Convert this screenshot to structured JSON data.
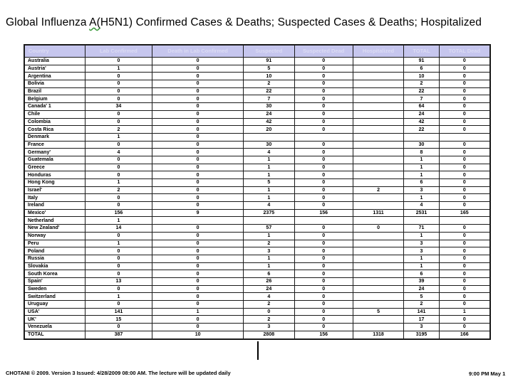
{
  "slide": {
    "title": {
      "text": "Global Influenza A(H5N1) Confirmed Cases & Deaths; Suspected Cases & Deaths; Hospitalized",
      "spellcheck_underline_segment": "A("
    },
    "footer_left": "CHOTANI © 2009. Version 3 Issued: 4/28/2009 08:00 AM. The lecture will be updated daily",
    "footer_right": "9:00 PM May 1"
  },
  "colors": {
    "header_bg": "#c6c6ee",
    "header_text": "#dcdcf4",
    "table_border": "#1a1a1a",
    "spellcheck_underline": "#3a9a3a"
  },
  "table": {
    "columns": [
      "Country",
      "Lab Confirmed",
      "Death in Lab Confirmed",
      "Suspected",
      "Suspected Dead",
      "Hospitalized",
      "TOTAL",
      "TOTAL Dead"
    ],
    "rows": [
      [
        "Australia",
        "0",
        "0",
        "91",
        "0",
        "",
        "91",
        "0"
      ],
      [
        "Austria'",
        "1",
        "0",
        "5",
        "0",
        "",
        "6",
        "0"
      ],
      [
        "Argentina",
        "0",
        "0",
        "10",
        "0",
        "",
        "10",
        "0"
      ],
      [
        "Bolivia",
        "0",
        "0",
        "2",
        "0",
        "",
        "2",
        "0"
      ],
      [
        "Brazil",
        "0",
        "0",
        "22",
        "0",
        "",
        "22",
        "0"
      ],
      [
        "Belgium",
        "0",
        "0",
        "7",
        "0",
        "",
        "7",
        "0"
      ],
      [
        "Canada' 1",
        "34",
        "0",
        "30",
        "0",
        "",
        "64",
        "0"
      ],
      [
        "Chile",
        "0",
        "0",
        "24",
        "0",
        "",
        "24",
        "0"
      ],
      [
        "Colombia",
        "0",
        "0",
        "42",
        "0",
        "",
        "42",
        "0"
      ],
      [
        "Costa Rica",
        "2",
        "0",
        "20",
        "0",
        "",
        "22",
        "0"
      ],
      [
        "Denmark",
        "1",
        "0",
        "",
        "",
        "",
        "",
        ""
      ],
      [
        "France",
        "0",
        "0",
        "30",
        "0",
        "",
        "30",
        "0"
      ],
      [
        "Germany'",
        "4",
        "0",
        "4",
        "0",
        "",
        "8",
        "0"
      ],
      [
        "Guatemala",
        "0",
        "0",
        "1",
        "0",
        "",
        "1",
        "0"
      ],
      [
        "Greece",
        "0",
        "0",
        "1",
        "0",
        "",
        "1",
        "0"
      ],
      [
        "Honduras",
        "0",
        "0",
        "1",
        "0",
        "",
        "1",
        "0"
      ],
      [
        "Hong Kong",
        "1",
        "0",
        "5",
        "0",
        "",
        "6",
        "0"
      ],
      [
        "Israel'",
        "2",
        "0",
        "1",
        "0",
        "2",
        "3",
        "0"
      ],
      [
        "Italy",
        "0",
        "0",
        "1",
        "0",
        "",
        "1",
        "0"
      ],
      [
        "Ireland",
        "0",
        "0",
        "4",
        "0",
        "",
        "4",
        "0"
      ],
      [
        "Mexico'",
        "156",
        "9",
        "2375",
        "156",
        "1311",
        "2531",
        "165"
      ],
      [
        "Netherland",
        "1",
        "",
        "",
        "",
        "",
        "",
        ""
      ],
      [
        "New Zealand'",
        "14",
        "0",
        "57",
        "0",
        "0",
        "71",
        "0"
      ],
      [
        "Norway",
        "0",
        "0",
        "1",
        "0",
        "",
        "1",
        "0"
      ],
      [
        "Peru",
        "1",
        "0",
        "2",
        "0",
        "",
        "3",
        "0"
      ],
      [
        "Poland",
        "0",
        "0",
        "3",
        "0",
        "",
        "3",
        "0"
      ],
      [
        "Russia",
        "0",
        "0",
        "1",
        "0",
        "",
        "1",
        "0"
      ],
      [
        "Slovakia",
        "0",
        "0",
        "1",
        "0",
        "",
        "1",
        "0"
      ],
      [
        "South Korea",
        "0",
        "0",
        "6",
        "0",
        "",
        "6",
        "0"
      ],
      [
        "Spain'",
        "13",
        "0",
        "26",
        "0",
        "",
        "39",
        "0"
      ],
      [
        "Sweden",
        "0",
        "0",
        "24",
        "0",
        "",
        "24",
        "0"
      ],
      [
        "Switzerland",
        "1",
        "0",
        "4",
        "0",
        "",
        "5",
        "0"
      ],
      [
        "Uruguay",
        "0",
        "0",
        "2",
        "0",
        "",
        "2",
        "0"
      ],
      [
        "USA'",
        "141",
        "1",
        "0",
        "0",
        "5",
        "141",
        "1"
      ],
      [
        "UK'",
        "15",
        "0",
        "2",
        "0",
        "",
        "17",
        "0"
      ],
      [
        "Venezuela",
        "0",
        "0",
        "3",
        "0",
        "",
        "3",
        "0"
      ]
    ],
    "total_row": [
      "TOTAL",
      "387",
      "10",
      "2808",
      "156",
      "1318",
      "3195",
      "166"
    ]
  }
}
